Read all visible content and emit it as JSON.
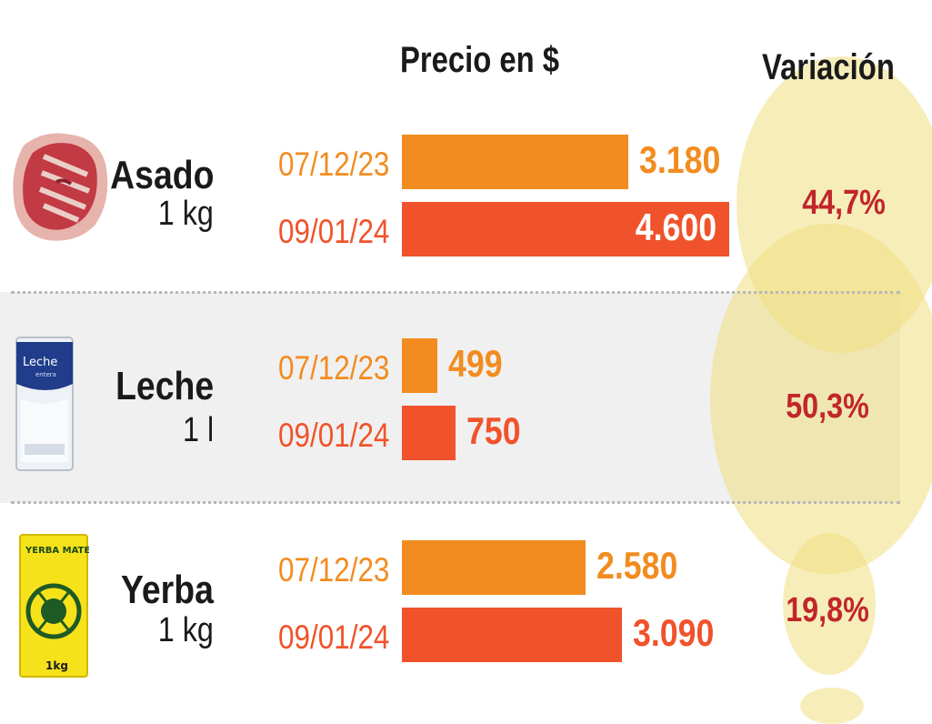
{
  "header": {
    "price_title": "Precio en $",
    "variation_title": "Variación"
  },
  "colors": {
    "old_date": "#f28c20",
    "new_date": "#f0532b",
    "old_value_text": "#f28c20",
    "variation_text": "#c0262b",
    "circle": "#f1de80"
  },
  "chart_data": {
    "type": "bar",
    "orientation": "horizontal",
    "categories": [
      "Asado",
      "Leche",
      "Yerba"
    ],
    "units": [
      "1 kg",
      "1 l",
      "1 kg"
    ],
    "series": [
      {
        "name": "07/12/23",
        "values": [
          3180,
          499,
          2580
        ],
        "labels": [
          "3.180",
          "499",
          "2.580"
        ]
      },
      {
        "name": "09/01/24",
        "values": [
          4600,
          750,
          3090
        ],
        "labels": [
          "4.600",
          "750",
          "3.090"
        ]
      }
    ],
    "variation": {
      "values": [
        44.7,
        50.3,
        19.8
      ],
      "labels": [
        "44,7%",
        "50,3%",
        "19,8%"
      ]
    },
    "icons": [
      "meat-asado-icon",
      "milk-carton-icon",
      "yerba-mate-package-icon"
    ]
  }
}
